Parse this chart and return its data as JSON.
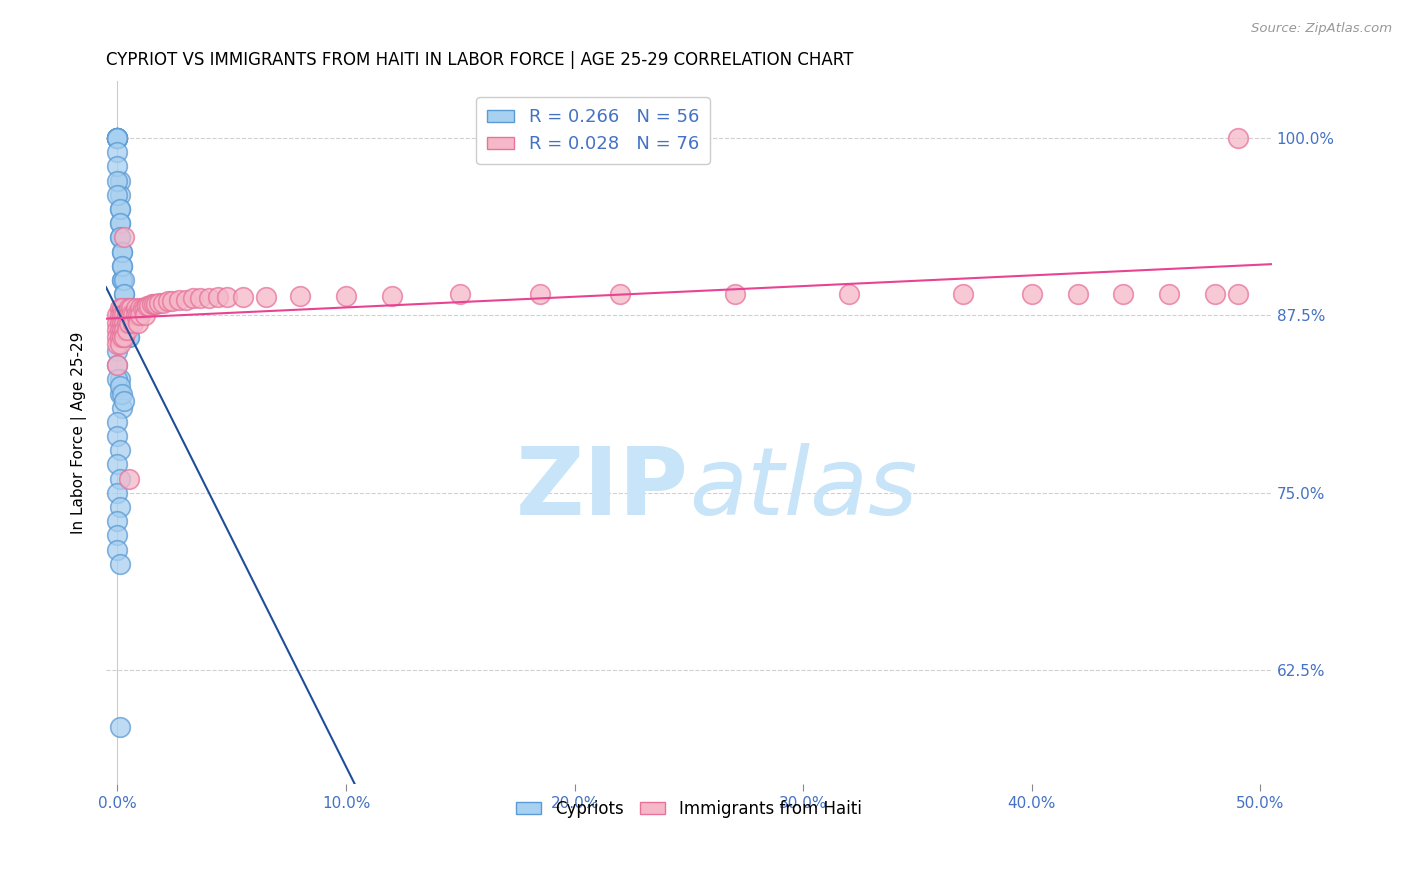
{
  "title": "CYPRIOT VS IMMIGRANTS FROM HAITI IN LABOR FORCE | AGE 25-29 CORRELATION CHART",
  "source_text": "Source: ZipAtlas.com",
  "ylabel": "In Labor Force | Age 25-29",
  "x_ticks": [
    0.0,
    0.1,
    0.2,
    0.3,
    0.4,
    0.5
  ],
  "x_tick_labels": [
    "0.0%",
    "10.0%",
    "20.0%",
    "30.0%",
    "40.0%",
    "50.0%"
  ],
  "y_ticks": [
    0.625,
    0.75,
    0.875,
    1.0
  ],
  "y_tick_labels": [
    "62.5%",
    "75.0%",
    "87.5%",
    "100.0%"
  ],
  "xlim": [
    -0.005,
    0.505
  ],
  "ylim": [
    0.545,
    1.04
  ],
  "blue_R": 0.266,
  "blue_N": 56,
  "pink_R": 0.028,
  "pink_N": 76,
  "legend_label_blue": "Cypriots",
  "legend_label_pink": "Immigrants from Haiti",
  "blue_color": "#a8d0f0",
  "blue_edge_color": "#5b9bd5",
  "pink_color": "#f4b8c8",
  "pink_edge_color": "#e8729a",
  "blue_line_color": "#1f4e99",
  "pink_line_color": "#e84393",
  "watermark_color": "#c8e4f8",
  "title_fontsize": 12,
  "axis_label_fontsize": 11,
  "tick_fontsize": 11,
  "blue_x": [
    0.0,
    0.0,
    0.0,
    0.0,
    0.0,
    0.0,
    0.0,
    0.001,
    0.001,
    0.001,
    0.001,
    0.001,
    0.002,
    0.002,
    0.002,
    0.002,
    0.003,
    0.003,
    0.003,
    0.004,
    0.004,
    0.005,
    0.005,
    0.0,
    0.0,
    0.0,
    0.0,
    0.001,
    0.001,
    0.001,
    0.002,
    0.002,
    0.003,
    0.003,
    0.004,
    0.0,
    0.0,
    0.001,
    0.001,
    0.002,
    0.0,
    0.0,
    0.001,
    0.0,
    0.001,
    0.0,
    0.001,
    0.0,
    0.0,
    0.0,
    0.001,
    0.001,
    0.0,
    0.001,
    0.002,
    0.003
  ],
  "blue_y": [
    1.0,
    1.0,
    1.0,
    1.0,
    1.0,
    1.0,
    1.0,
    0.97,
    0.96,
    0.95,
    0.94,
    0.93,
    0.92,
    0.91,
    0.9,
    0.9,
    0.89,
    0.88,
    0.88,
    0.87,
    0.87,
    0.86,
    0.86,
    0.99,
    0.98,
    0.97,
    0.96,
    0.95,
    0.94,
    0.93,
    0.92,
    0.91,
    0.9,
    0.89,
    0.88,
    0.85,
    0.84,
    0.83,
    0.82,
    0.81,
    0.8,
    0.79,
    0.78,
    0.77,
    0.76,
    0.75,
    0.74,
    0.73,
    0.72,
    0.71,
    0.7,
    0.585,
    0.83,
    0.825,
    0.82,
    0.815
  ],
  "pink_x": [
    0.0,
    0.0,
    0.0,
    0.0,
    0.0,
    0.001,
    0.001,
    0.001,
    0.001,
    0.001,
    0.001,
    0.002,
    0.002,
    0.002,
    0.002,
    0.002,
    0.003,
    0.003,
    0.003,
    0.003,
    0.004,
    0.004,
    0.004,
    0.005,
    0.005,
    0.005,
    0.006,
    0.006,
    0.007,
    0.007,
    0.008,
    0.008,
    0.009,
    0.009,
    0.01,
    0.01,
    0.011,
    0.012,
    0.012,
    0.013,
    0.014,
    0.015,
    0.016,
    0.017,
    0.018,
    0.02,
    0.022,
    0.024,
    0.027,
    0.03,
    0.033,
    0.036,
    0.04,
    0.044,
    0.048,
    0.055,
    0.065,
    0.08,
    0.1,
    0.12,
    0.15,
    0.185,
    0.22,
    0.27,
    0.32,
    0.37,
    0.4,
    0.42,
    0.44,
    0.46,
    0.48,
    0.49,
    0.003,
    0.005,
    0.49,
    0.0
  ],
  "pink_y": [
    0.875,
    0.87,
    0.865,
    0.86,
    0.855,
    0.88,
    0.875,
    0.87,
    0.865,
    0.86,
    0.855,
    0.88,
    0.875,
    0.87,
    0.865,
    0.86,
    0.875,
    0.87,
    0.865,
    0.86,
    0.875,
    0.87,
    0.865,
    0.88,
    0.875,
    0.87,
    0.88,
    0.875,
    0.875,
    0.87,
    0.88,
    0.875,
    0.875,
    0.87,
    0.88,
    0.875,
    0.88,
    0.88,
    0.875,
    0.882,
    0.882,
    0.883,
    0.883,
    0.883,
    0.884,
    0.884,
    0.885,
    0.885,
    0.886,
    0.886,
    0.887,
    0.887,
    0.887,
    0.888,
    0.888,
    0.888,
    0.888,
    0.889,
    0.889,
    0.889,
    0.89,
    0.89,
    0.89,
    0.89,
    0.89,
    0.89,
    0.89,
    0.89,
    0.89,
    0.89,
    0.89,
    0.89,
    0.93,
    0.76,
    1.0,
    0.84
  ]
}
